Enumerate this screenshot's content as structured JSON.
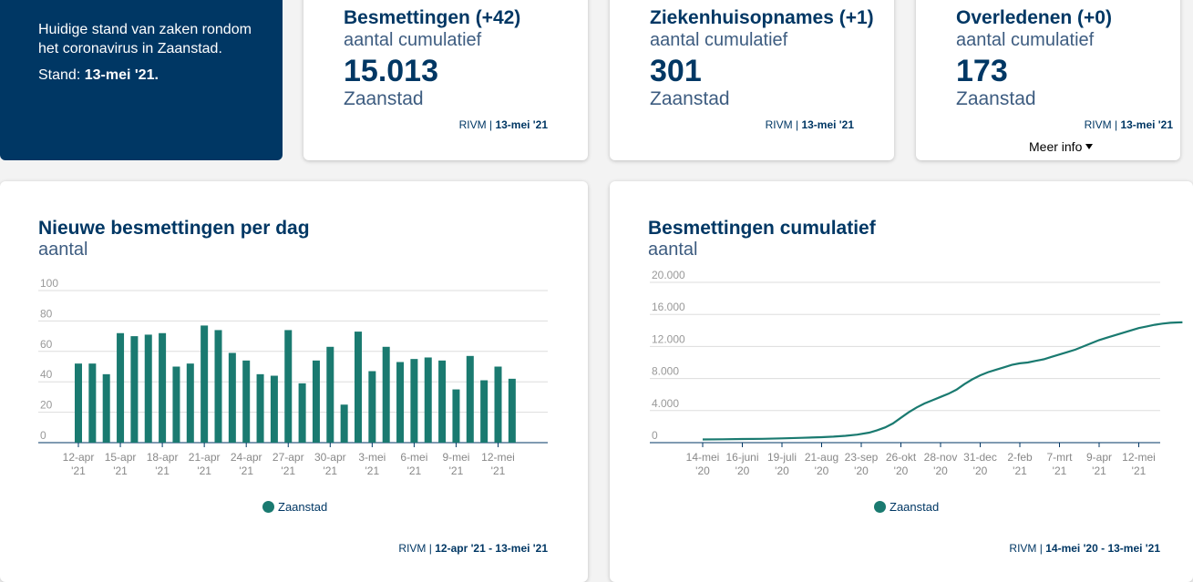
{
  "intro": {
    "text": "Huidige stand van zaken rondom het coronavirus in Zaanstad.",
    "stand_label": "Stand:",
    "stand_date": "13-mei '21."
  },
  "kpis": [
    {
      "title": "Besmettingen (+42)",
      "subtitle": "aantal cumulatief",
      "value": "15.013",
      "region": "Zaanstad",
      "source": "RIVM",
      "date": "13-mei '21"
    },
    {
      "title": "Ziekenhuisopnames (+1)",
      "subtitle": "aantal cumulatief",
      "value": "301",
      "region": "Zaanstad",
      "source": "RIVM",
      "date": "13-mei '21"
    },
    {
      "title": "Overledenen (+0)",
      "subtitle": "aantal cumulatief",
      "value": "173",
      "region": "Zaanstad",
      "source": "RIVM",
      "date": "13-mei '21",
      "more": "Meer info"
    }
  ],
  "colors": {
    "primary": "#003764",
    "series": "#1a7a70",
    "grid": "#dddddd"
  },
  "chart_data": [
    {
      "type": "bar",
      "title": "Nieuwe besmettingen per dag",
      "subtitle": "aantal",
      "ylim": [
        0,
        100
      ],
      "yticks": [
        "0",
        "20",
        "40",
        "60",
        "80",
        "100"
      ],
      "ytick_values": [
        0,
        20,
        40,
        60,
        80,
        100
      ],
      "xtick_labels": [
        [
          "12-apr",
          "'21"
        ],
        [
          "15-apr",
          "'21"
        ],
        [
          "18-apr",
          "'21"
        ],
        [
          "21-apr",
          "'21"
        ],
        [
          "24-apr",
          "'21"
        ],
        [
          "27-apr",
          "'21"
        ],
        [
          "30-apr",
          "'21"
        ],
        [
          "3-mei",
          "'21"
        ],
        [
          "6-mei",
          "'21"
        ],
        [
          "9-mei",
          "'21"
        ],
        [
          "12-mei",
          "'21"
        ]
      ],
      "legend": "Zaanstad",
      "source": "RIVM",
      "period": "12-apr '21 - 13-mei '21",
      "series": [
        {
          "name": "Zaanstad",
          "values": [
            52,
            52,
            45,
            72,
            70,
            71,
            72,
            50,
            52,
            77,
            74,
            59,
            54,
            45,
            44,
            74,
            39,
            54,
            63,
            25,
            73,
            47,
            63,
            53,
            55,
            56,
            54,
            35,
            57,
            41,
            50,
            42
          ]
        }
      ]
    },
    {
      "type": "line",
      "title": "Besmettingen cumulatief",
      "subtitle": "aantal",
      "ylim": [
        0,
        20000
      ],
      "yticks": [
        "0",
        "4.000",
        "8.000",
        "12.000",
        "16.000",
        "20.000"
      ],
      "ytick_values": [
        0,
        4000,
        8000,
        12000,
        16000,
        20000
      ],
      "xtick_labels": [
        [
          "14-mei",
          "'20"
        ],
        [
          "16-juni",
          "'20"
        ],
        [
          "19-juli",
          "'20"
        ],
        [
          "21-aug",
          "'20"
        ],
        [
          "23-sep",
          "'20"
        ],
        [
          "26-okt",
          "'20"
        ],
        [
          "28-nov",
          "'20"
        ],
        [
          "31-dec",
          "'20"
        ],
        [
          "2-feb",
          "'21"
        ],
        [
          "7-mrt",
          "'21"
        ],
        [
          "9-apr",
          "'21"
        ],
        [
          "12-mei",
          "'21"
        ]
      ],
      "legend": "Zaanstad",
      "source": "RIVM",
      "period": "14-mei '20 - 13-mei '21",
      "series": [
        {
          "name": "Zaanstad",
          "x": [
            0,
            0.5,
            1,
            1.5,
            2,
            2.5,
            3,
            3.3,
            3.6,
            3.9,
            4.2,
            4.4,
            4.6,
            4.8,
            5,
            5.2,
            5.4,
            5.6,
            5.8,
            6,
            6.2,
            6.4,
            6.6,
            6.8,
            7,
            7.2,
            7.4,
            7.6,
            7.8,
            8,
            8.2,
            8.4,
            8.6,
            8.8,
            9,
            9.2,
            9.4,
            9.6,
            9.8,
            10,
            10.2,
            10.4,
            10.6,
            10.8,
            11,
            11.2,
            11.4,
            11.6,
            11.8,
            12,
            12.1
          ],
          "values": [
            400,
            420,
            450,
            480,
            530,
            600,
            680,
            750,
            850,
            1000,
            1250,
            1550,
            1900,
            2400,
            3100,
            3800,
            4400,
            4900,
            5300,
            5700,
            6100,
            6600,
            7300,
            7900,
            8400,
            8800,
            9100,
            9400,
            9700,
            9900,
            10000,
            10200,
            10400,
            10700,
            11000,
            11300,
            11600,
            12000,
            12400,
            12800,
            13100,
            13400,
            13700,
            14000,
            14300,
            14500,
            14700,
            14850,
            14950,
            15000,
            15013
          ]
        }
      ]
    }
  ]
}
